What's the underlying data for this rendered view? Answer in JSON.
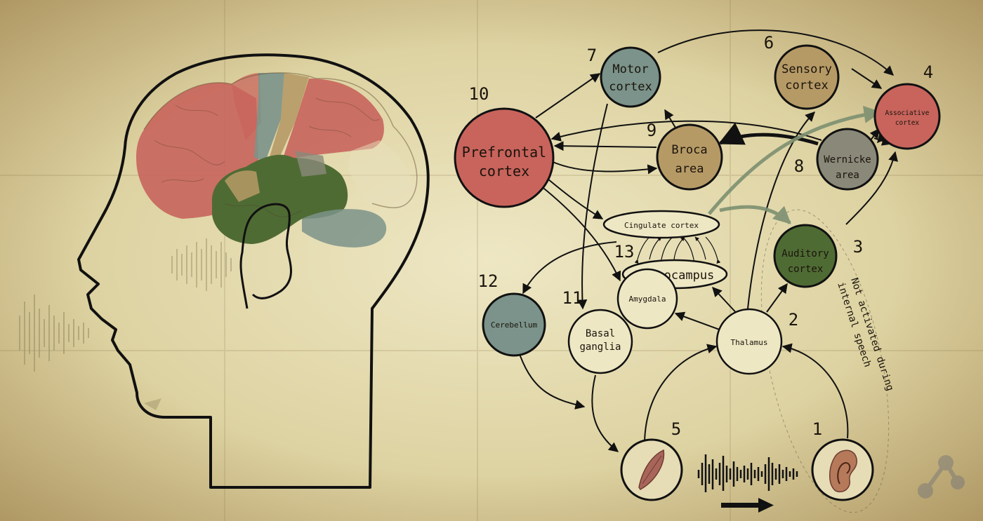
{
  "colors": {
    "parchment": "#ddd2a1",
    "parchment_light": "#eee7c4",
    "parchment_edge": "#a88f5a",
    "red": "#c8645c",
    "green": "#4f6b34",
    "gray_green": "#7b938a",
    "tan": "#b69a66",
    "ink": "#111111"
  },
  "nodes": {
    "motor": {
      "number": "7",
      "line1": "Motor",
      "line2": "cortex"
    },
    "sensory": {
      "number": "6",
      "line1": "Sensory",
      "line2": "cortex"
    },
    "associative": {
      "number": "4",
      "line1": "Associative",
      "line2": "cortex"
    },
    "prefrontal": {
      "number": "10",
      "line1": "Prefrontal",
      "line2": "cortex"
    },
    "broca": {
      "number": "9",
      "line1": "Broca",
      "line2": "area"
    },
    "wernicke": {
      "number": "8",
      "line1": "Wernicke",
      "line2": "area"
    },
    "cingulate": {
      "label": "Cingulate cortex"
    },
    "auditory": {
      "number": "3",
      "line1": "Auditory",
      "line2": "cortex"
    },
    "hippocampus": {
      "number": "13",
      "label": "Hippocampus"
    },
    "cerebellum": {
      "number": "12",
      "label": "Cerebellum"
    },
    "amygdala": {
      "label": "Amygdala"
    },
    "basal": {
      "number": "11",
      "line1": "Basal",
      "line2": "ganglia"
    },
    "thalamus": {
      "number": "2",
      "label": "Thalamus"
    },
    "mouth": {
      "number": "5",
      "icon": "lips-icon"
    },
    "ear": {
      "number": "1",
      "icon": "ear-icon"
    }
  },
  "note": {
    "line1": "Not activated during",
    "line2": "internal speech"
  },
  "icons": {
    "share": "share-icon",
    "sound_wave": "sound-wave-icon",
    "arrow": "right-arrow-icon"
  }
}
